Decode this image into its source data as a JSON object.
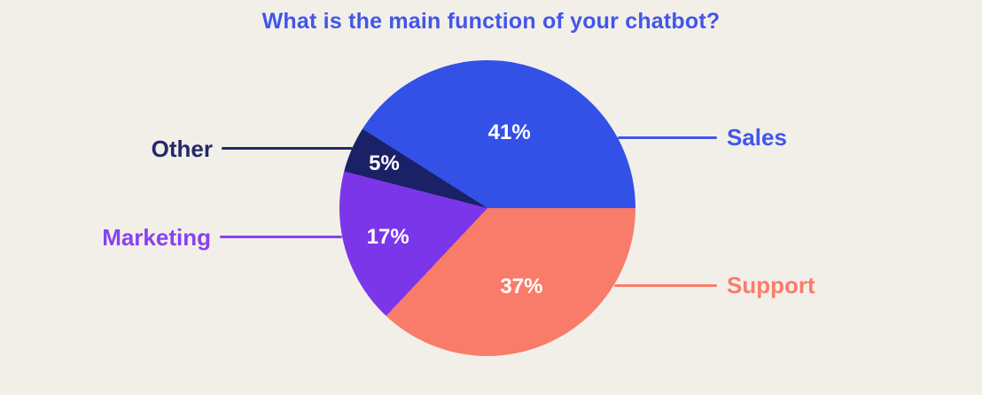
{
  "page": {
    "background": "#F2EFE9"
  },
  "chart_data": {
    "type": "pie",
    "title": "What is the main function of your chatbot?",
    "title_color": "#4156EA",
    "legend_position": "callout-labels-left-right",
    "percent_label_color": "#FFFFFF",
    "categories": [
      "Sales",
      "Support",
      "Marketing",
      "Other"
    ],
    "values": [
      41,
      37,
      17,
      5
    ],
    "slices": [
      {
        "label": "Sales",
        "value": 41,
        "pct": "41%",
        "color": "#3351E6",
        "label_color": "#4156EA",
        "side": "right"
      },
      {
        "label": "Support",
        "value": 37,
        "pct": "37%",
        "color": "#F97C6B",
        "label_color": "#F97C6B",
        "side": "right"
      },
      {
        "label": "Marketing",
        "value": 17,
        "pct": "17%",
        "color": "#7C36E9",
        "label_color": "#8742EE",
        "side": "left"
      },
      {
        "label": "Other",
        "value": 5,
        "pct": "5%",
        "color": "#1B2166",
        "label_color": "#232968",
        "side": "left"
      }
    ]
  }
}
